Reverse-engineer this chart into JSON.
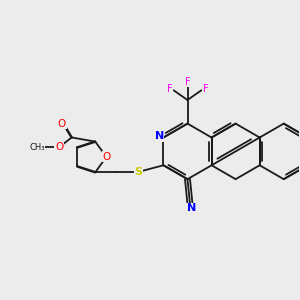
{
  "background_color": "#ececec",
  "bond_color": "#1a1a1a",
  "atom_colors": {
    "O": "#ff0000",
    "N": "#0000ff",
    "S": "#cccc00",
    "F": "#ff00ff",
    "C": "#1a1a1a"
  },
  "figsize": [
    3.0,
    3.0
  ],
  "dpi": 100
}
